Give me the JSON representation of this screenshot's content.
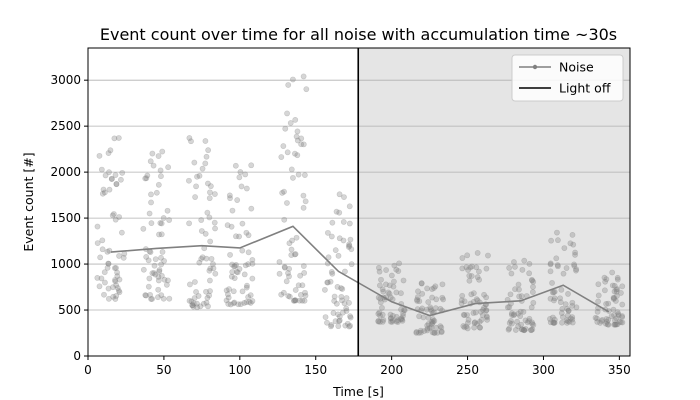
{
  "chart_data": {
    "type": "scatter",
    "title": "Event count over time for all noise with accumulation time ~30s",
    "xlabel": "Time [s]",
    "ylabel": "Event count [#]",
    "xlim": [
      0,
      357
    ],
    "ylim": [
      0,
      3350
    ],
    "x_ticks": [
      0,
      50,
      100,
      150,
      200,
      250,
      300,
      350
    ],
    "y_ticks": [
      0,
      500,
      1000,
      1500,
      2000,
      2500,
      3000
    ],
    "grid": "horizontal",
    "legend_position": "top-right",
    "light_off_time": 178,
    "shaded_region": [
      178,
      357
    ],
    "colors": {
      "points": "#808080",
      "line": "#808080",
      "marker": "#000000",
      "shade": "#e5e5e5",
      "grid": "#b0b0b0"
    },
    "series": [
      {
        "name": "Noise",
        "kind": "line",
        "x": [
          15,
          45,
          75,
          100,
          135,
          165,
          200,
          225,
          255,
          285,
          313,
          343
        ],
        "y": [
          1130,
          1170,
          1200,
          1175,
          1410,
          920,
          590,
          440,
          570,
          600,
          770,
          480
        ]
      },
      {
        "name": "Light off",
        "kind": "vline",
        "x": 178
      }
    ],
    "scatter_clusters": [
      {
        "center": 15,
        "count": 60,
        "y_min": 620,
        "y_max": 2380
      },
      {
        "center": 45,
        "count": 60,
        "y_min": 620,
        "y_max": 2250
      },
      {
        "center": 75,
        "count": 60,
        "y_min": 530,
        "y_max": 2400
      },
      {
        "center": 100,
        "count": 60,
        "y_min": 560,
        "y_max": 2180
      },
      {
        "center": 135,
        "count": 65,
        "y_min": 600,
        "y_max": 3050
      },
      {
        "center": 165,
        "count": 60,
        "y_min": 320,
        "y_max": 1850
      },
      {
        "center": 200,
        "count": 60,
        "y_min": 370,
        "y_max": 1060
      },
      {
        "center": 225,
        "count": 60,
        "y_min": 250,
        "y_max": 820
      },
      {
        "center": 255,
        "count": 60,
        "y_min": 300,
        "y_max": 1180
      },
      {
        "center": 285,
        "count": 60,
        "y_min": 280,
        "y_max": 1080
      },
      {
        "center": 313,
        "count": 60,
        "y_min": 360,
        "y_max": 1350
      },
      {
        "center": 343,
        "count": 60,
        "y_min": 340,
        "y_max": 950
      }
    ]
  }
}
